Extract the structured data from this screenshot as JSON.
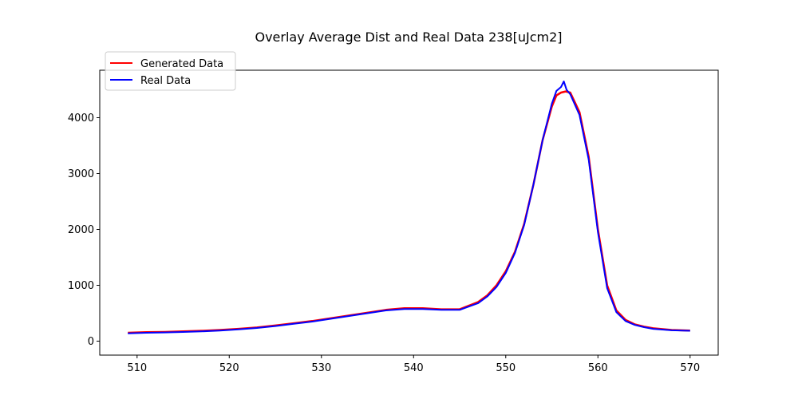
{
  "chart_data": {
    "type": "line",
    "title": "Overlay Average Dist and Real Data 238[uJcm2]",
    "xlabel": "",
    "ylabel": "",
    "xlim": [
      505.95,
      573.05
    ],
    "ylim": [
      -250,
      4850
    ],
    "xticks": [
      {
        "value": 510,
        "label": "510"
      },
      {
        "value": 520,
        "label": "520"
      },
      {
        "value": 530,
        "label": "530"
      },
      {
        "value": 540,
        "label": "540"
      },
      {
        "value": 550,
        "label": "550"
      },
      {
        "value": 560,
        "label": "560"
      },
      {
        "value": 570,
        "label": "570"
      }
    ],
    "yticks": [
      {
        "value": 0,
        "label": "0"
      },
      {
        "value": 1000,
        "label": "1000"
      },
      {
        "value": 2000,
        "label": "2000"
      },
      {
        "value": 3000,
        "label": "3000"
      },
      {
        "value": 4000,
        "label": "4000"
      }
    ],
    "grid": false,
    "legend": {
      "position": "top-left"
    },
    "series": [
      {
        "name": "Generated Data",
        "color": "#ff0000",
        "x": [
          509,
          511,
          513,
          515,
          517,
          519,
          521,
          523,
          525,
          527,
          529,
          531,
          533,
          535,
          537,
          539,
          541,
          543,
          545,
          547,
          548,
          549,
          550,
          551,
          552,
          553,
          554,
          555,
          555.5,
          556,
          556.5,
          557,
          558,
          559,
          560,
          561,
          562,
          563,
          564,
          565,
          566,
          568,
          570
        ],
        "y": [
          150,
          160,
          165,
          175,
          185,
          200,
          220,
          245,
          280,
          320,
          360,
          410,
          460,
          510,
          560,
          590,
          590,
          570,
          570,
          700,
          820,
          1000,
          1250,
          1600,
          2100,
          2800,
          3600,
          4200,
          4400,
          4450,
          4470,
          4450,
          4100,
          3300,
          2000,
          1000,
          550,
          380,
          300,
          260,
          230,
          200,
          190
        ]
      },
      {
        "name": "Real Data",
        "color": "#0000ff",
        "x": [
          509,
          511,
          513,
          515,
          517,
          519,
          521,
          523,
          525,
          527,
          529,
          531,
          533,
          535,
          537,
          539,
          541,
          543,
          545,
          547,
          548,
          549,
          550,
          551,
          552,
          553,
          554,
          555,
          555.5,
          556,
          556.3,
          556.6,
          557,
          558,
          559,
          560,
          561,
          562,
          563,
          564,
          565,
          566,
          568,
          570
        ],
        "y": [
          140,
          150,
          155,
          165,
          175,
          190,
          210,
          235,
          270,
          310,
          350,
          400,
          450,
          500,
          550,
          575,
          575,
          560,
          560,
          680,
          800,
          970,
          1220,
          1580,
          2080,
          2800,
          3600,
          4250,
          4480,
          4550,
          4650,
          4500,
          4420,
          4050,
          3250,
          1950,
          950,
          520,
          360,
          290,
          250,
          220,
          195,
          185
        ]
      }
    ]
  }
}
